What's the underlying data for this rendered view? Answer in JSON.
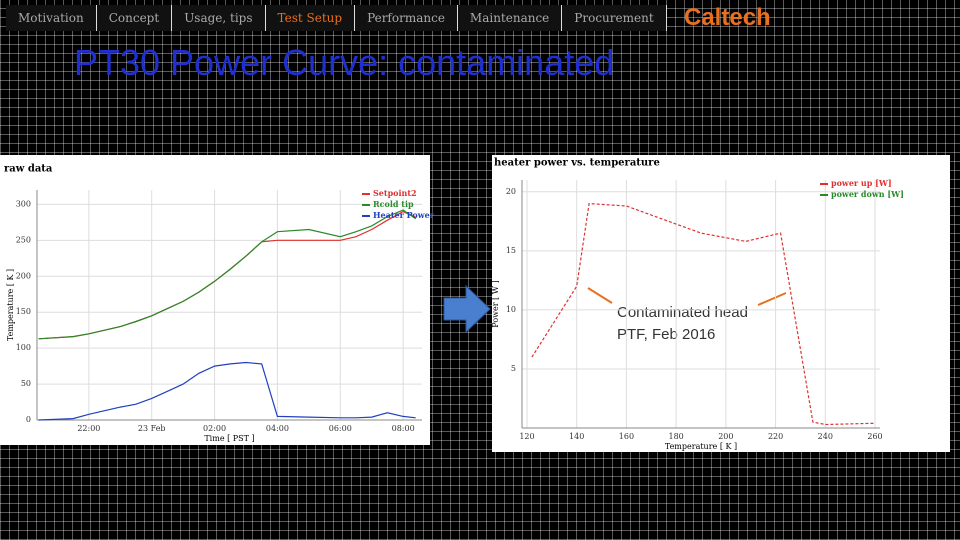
{
  "nav": [
    "Motivation",
    "Concept",
    "Usage, tips",
    "Test Setup",
    "Performance",
    "Maintenance",
    "Procurement"
  ],
  "nav_active": 3,
  "logo": "Caltech",
  "title": "PT30 Power Curve: contaminated",
  "annotation": [
    "Contaminated head",
    "PTF, Feb 2016"
  ],
  "chart_data": [
    {
      "type": "line",
      "title": "raw data",
      "x_label": "Time [ PST ]",
      "y_label": "Temperature [ K ]",
      "x": [
        20.4,
        21.5,
        22,
        22.5,
        23,
        23.5,
        24,
        24.5,
        25,
        25.5,
        26,
        26.5,
        27,
        27.5,
        28,
        29,
        30,
        30.5,
        31,
        31.5,
        32,
        32.4
      ],
      "series": [
        {
          "name": "Setpoint2",
          "color": "#e03030",
          "values": [
            113,
            116,
            120,
            125,
            130,
            137,
            145,
            155,
            165,
            178,
            193,
            210,
            228,
            248,
            250,
            250,
            250,
            255,
            265,
            278,
            290,
            282
          ]
        },
        {
          "name": "Rcold tip",
          "color": "#2a8a2a",
          "values": [
            113,
            116,
            120,
            125,
            130,
            137,
            145,
            155,
            165,
            178,
            193,
            210,
            228,
            248,
            262,
            265,
            255,
            262,
            270,
            283,
            292,
            280
          ]
        },
        {
          "name": "Heater Power",
          "color": "#2040c0",
          "values": [
            0,
            2,
            8,
            13,
            18,
            22,
            30,
            40,
            50,
            65,
            75,
            78,
            80,
            78,
            5,
            4,
            3,
            3,
            4,
            10,
            5,
            3
          ]
        }
      ],
      "xlim": [
        20.35,
        32.6
      ],
      "xticks": [
        {
          "value": 22,
          "label": "22:00"
        },
        {
          "value": 24,
          "label": "23 Feb"
        },
        {
          "value": 26,
          "label": "02:00"
        },
        {
          "value": 28,
          "label": "04:00"
        },
        {
          "value": 30,
          "label": "06:00"
        },
        {
          "value": 32,
          "label": "08:00"
        }
      ],
      "ylim": [
        0,
        320
      ],
      "yticks": [
        0,
        50,
        100,
        150,
        200,
        250,
        300
      ],
      "grid": true,
      "legend": "upper right"
    },
    {
      "type": "line",
      "title": "heater power vs. temperature",
      "x_label": "Temperature [ K ]",
      "y_label": "Power [ W ]",
      "x": [
        122,
        140,
        145,
        160,
        190,
        208,
        222,
        235,
        240,
        260
      ],
      "series": [
        {
          "name": "power up [W]",
          "color": "#e03030",
          "values": [
            6,
            12,
            19,
            18.8,
            16.5,
            15.8,
            16.5,
            0.5,
            0.3,
            0.4
          ]
        },
        {
          "name": "power down [W]",
          "color": "#2a8a2a",
          "values": [
            null,
            null,
            null,
            null,
            null,
            null,
            null,
            null,
            null,
            null
          ]
        }
      ],
      "xlim": [
        118,
        262
      ],
      "xticks": [
        120,
        140,
        160,
        180,
        200,
        220,
        240,
        260
      ],
      "ylim": [
        0,
        21
      ],
      "yticks": [
        5,
        10,
        15,
        20
      ],
      "grid": true,
      "legend": "upper right"
    }
  ]
}
